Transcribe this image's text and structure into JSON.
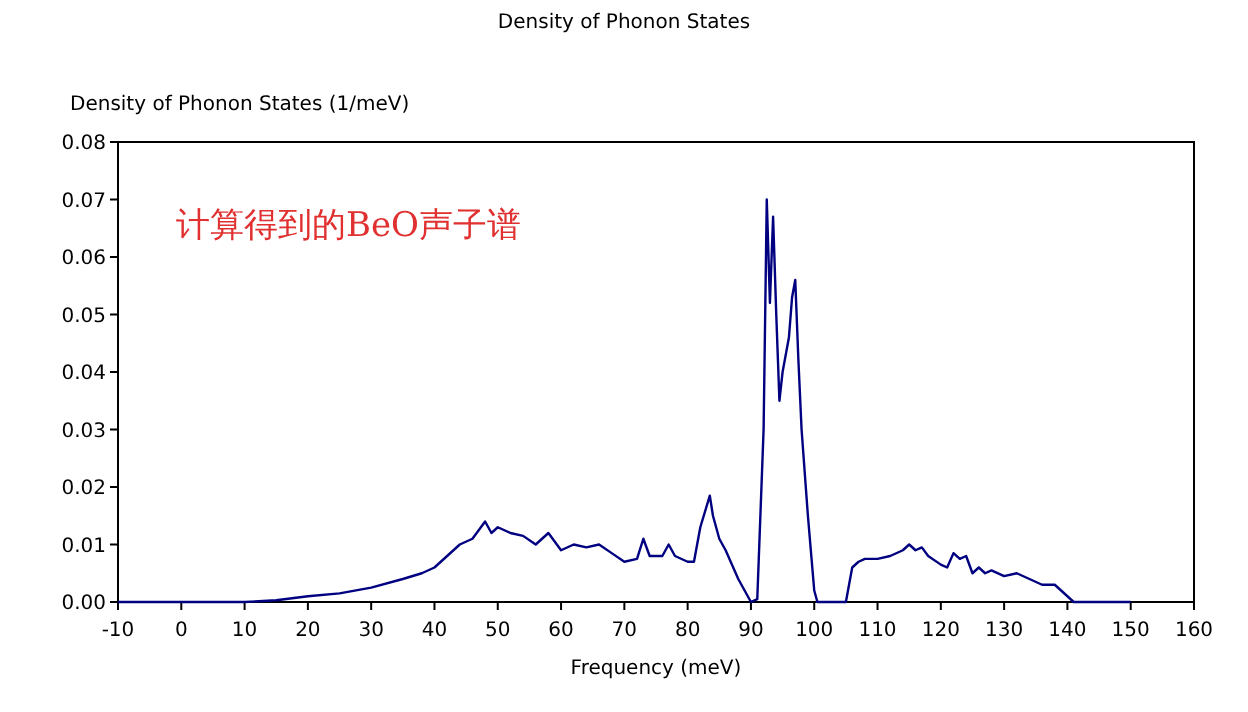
{
  "chart_data": {
    "type": "line",
    "title": "Density of Phonon States",
    "ylabel": "Density of Phonon States (1/meV)",
    "xlabel": "Frequency (meV)",
    "annotations": [
      "计算得到的BeO声子谱"
    ],
    "xlim": [
      -10,
      160
    ],
    "xticks": [
      -10,
      0,
      10,
      20,
      30,
      40,
      50,
      60,
      70,
      80,
      90,
      100,
      110,
      120,
      130,
      140,
      150,
      160
    ],
    "ylim": [
      0,
      0.08
    ],
    "yticks": [
      {
        "value": 0,
        "label": "0.00"
      },
      {
        "value": 0.01,
        "label": "0.01"
      },
      {
        "value": 0.02,
        "label": "0.02"
      },
      {
        "value": 0.03,
        "label": "0.03"
      },
      {
        "value": 0.04,
        "label": "0.04"
      },
      {
        "value": 0.05,
        "label": "0.05"
      },
      {
        "value": 0.06,
        "label": "0.06"
      },
      {
        "value": 0.07,
        "label": "0.07"
      },
      {
        "value": 0.08,
        "label": "0.08"
      }
    ],
    "grid": false,
    "series": [
      {
        "color": "#000080",
        "x": [
          -10,
          10,
          15,
          20,
          25,
          30,
          35,
          38,
          40,
          42,
          44,
          46,
          48,
          49,
          50,
          52,
          54,
          56,
          58,
          60,
          62,
          64,
          66,
          68,
          70,
          72,
          73,
          74,
          76,
          77,
          78,
          80,
          81,
          82,
          83.5,
          84,
          85,
          86,
          88,
          89,
          90,
          91,
          92,
          92.5,
          93,
          93.5,
          94,
          94.5,
          95,
          96,
          96.5,
          97,
          97.5,
          98,
          99,
          100,
          100.5,
          105,
          106,
          107,
          108,
          110,
          112,
          114,
          115,
          116,
          117,
          118,
          120,
          121,
          122,
          123,
          124,
          125,
          126,
          127,
          128,
          130,
          132,
          134,
          136,
          138,
          139,
          140,
          141,
          150
        ],
        "values": [
          0,
          0,
          0.0003,
          0.001,
          0.0015,
          0.0025,
          0.004,
          0.005,
          0.006,
          0.008,
          0.01,
          0.011,
          0.014,
          0.012,
          0.013,
          0.012,
          0.0115,
          0.01,
          0.012,
          0.009,
          0.01,
          0.0095,
          0.01,
          0.0085,
          0.007,
          0.0075,
          0.011,
          0.008,
          0.008,
          0.01,
          0.008,
          0.007,
          0.007,
          0.013,
          0.0185,
          0.015,
          0.011,
          0.009,
          0.004,
          0.002,
          0,
          0.0005,
          0.03,
          0.07,
          0.052,
          0.067,
          0.05,
          0.035,
          0.04,
          0.046,
          0.053,
          0.056,
          0.042,
          0.03,
          0.015,
          0.002,
          0,
          0,
          0.006,
          0.007,
          0.0075,
          0.0075,
          0.008,
          0.009,
          0.01,
          0.009,
          0.0095,
          0.008,
          0.0065,
          0.006,
          0.0085,
          0.0075,
          0.008,
          0.005,
          0.006,
          0.005,
          0.0055,
          0.0045,
          0.005,
          0.004,
          0.003,
          0.003,
          0.002,
          0.001,
          0,
          0
        ]
      }
    ]
  }
}
